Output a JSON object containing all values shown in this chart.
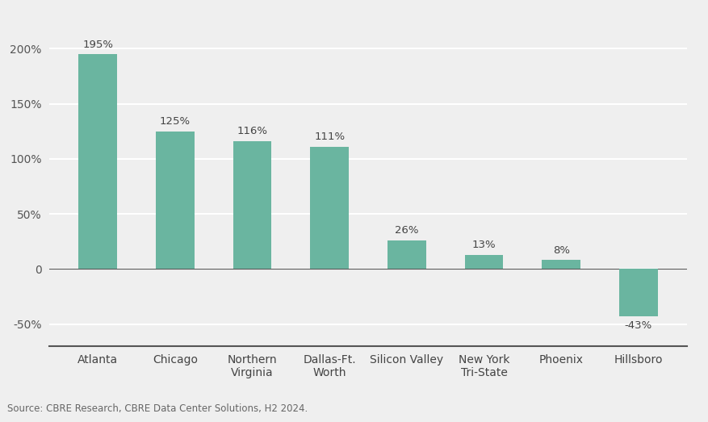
{
  "categories": [
    "Atlanta",
    "Chicago",
    "Northern\nVirginia",
    "Dallas-Ft.\nWorth",
    "Silicon Valley",
    "New York\nTri-State",
    "Phoenix",
    "Hillsboro"
  ],
  "values": [
    195,
    125,
    116,
    111,
    26,
    13,
    8,
    -43
  ],
  "bar_color": "#6ab5a0",
  "background_color": "#efefef",
  "ylabel_ticks": [
    "-50%",
    "0",
    "50%",
    "100%",
    "150%",
    "200%"
  ],
  "ytick_values": [
    -50,
    0,
    50,
    100,
    150,
    200
  ],
  "ylim": [
    -70,
    225
  ],
  "label_fontsize": 9.5,
  "tick_fontsize": 10,
  "source_text": "Source: CBRE Research, CBRE Data Center Solutions, H2 2024.",
  "source_fontsize": 8.5,
  "bar_width": 0.5,
  "grid_color": "#ffffff",
  "grid_linewidth": 1.5,
  "spine_color": "#555555"
}
